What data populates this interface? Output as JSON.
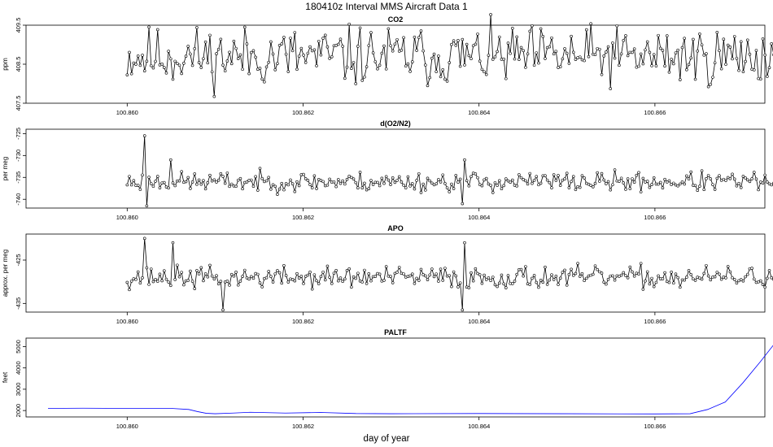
{
  "title": "180410z   Interval MMS Aircraft Data 1",
  "xlabel": "day of year",
  "chart_data": [
    {
      "type": "line",
      "title": "CO2",
      "ylabel": "ppm",
      "xlim": [
        100.85885,
        100.86725
      ],
      "ylim": [
        407.5,
        409.5
      ],
      "x_ticks": [
        "100.860",
        "100.862",
        "100.864",
        "100.866"
      ],
      "y_ticks": [
        "407.5",
        "408.5",
        "409.5"
      ],
      "marker": "open-circle",
      "line_color": "#000000",
      "series": [
        {
          "name": "",
          "x_start": 100.86,
          "x_end": 100.8674,
          "n": 300,
          "mean": 408.7,
          "spread": 0.75,
          "spikes": [],
          "seed": 11
        }
      ]
    },
    {
      "type": "line",
      "title": "d(O2/N2)",
      "ylabel": "per meg",
      "xlim": [
        100.85885,
        100.86725
      ],
      "ylim": [
        -742,
        -724
      ],
      "x_ticks": [
        "100.860",
        "100.862",
        "100.864",
        "100.866"
      ],
      "y_ticks": [
        "-740",
        "-735",
        "-730",
        "-725"
      ],
      "marker": "open-circle",
      "line_color": "#000000",
      "series": [
        {
          "name": "",
          "x_start": 100.86,
          "x_end": 100.8674,
          "n": 300,
          "mean": -736,
          "spread": 2.2,
          "spikes": [
            [
              100.8602,
              -725.5
            ],
            [
              100.8602,
              -741.5
            ],
            [
              100.8605,
              -731
            ],
            [
              100.8638,
              -731
            ],
            [
              100.8638,
              -741
            ]
          ],
          "seed": 23
        }
      ]
    },
    {
      "type": "line",
      "title": "APO",
      "ylabel": "approx. per meg",
      "xlim": [
        100.85885,
        100.86725
      ],
      "ylim": [
        -437,
        -419
      ],
      "x_ticks": [
        "100.860",
        "100.862",
        "100.864",
        "100.866"
      ],
      "y_ticks": [
        "-435",
        "-425"
      ],
      "marker": "open-circle",
      "line_color": "#000000",
      "series": [
        {
          "name": "",
          "x_start": 100.86,
          "x_end": 100.8674,
          "n": 300,
          "mean": -429,
          "spread": 2.5,
          "spikes": [
            [
              100.8602,
              -420
            ],
            [
              100.8605,
              -421
            ],
            [
              100.8611,
              -436.5
            ],
            [
              100.8638,
              -421
            ],
            [
              100.8638,
              -436.5
            ]
          ],
          "seed": 37
        }
      ]
    },
    {
      "type": "line",
      "title": "PALTF",
      "ylabel": "feet",
      "xlim": [
        100.85885,
        100.86725
      ],
      "ylim": [
        1700,
        5400
      ],
      "x_ticks": [
        "100.860",
        "100.862",
        "100.864",
        "100.866"
      ],
      "y_ticks": [
        "2000",
        "3000",
        "4000",
        "5000"
      ],
      "marker": "none",
      "line_color": "#0000ff",
      "series": [
        {
          "name": "",
          "x": [
            100.8591,
            100.8595,
            100.86,
            100.8605,
            100.8607,
            100.8608,
            100.8609,
            100.861,
            100.8612,
            100.8614,
            100.8618,
            100.8622,
            100.8626,
            100.863,
            100.864,
            100.865,
            100.866,
            100.8664,
            100.8666,
            100.8668,
            100.867,
            100.8672,
            100.8674
          ],
          "y": [
            2100,
            2110,
            2100,
            2100,
            2050,
            1950,
            1870,
            1850,
            1880,
            1920,
            1880,
            1910,
            1860,
            1850,
            1860,
            1850,
            1840,
            1850,
            2050,
            2400,
            3300,
            4300,
            5350
          ]
        }
      ]
    }
  ]
}
